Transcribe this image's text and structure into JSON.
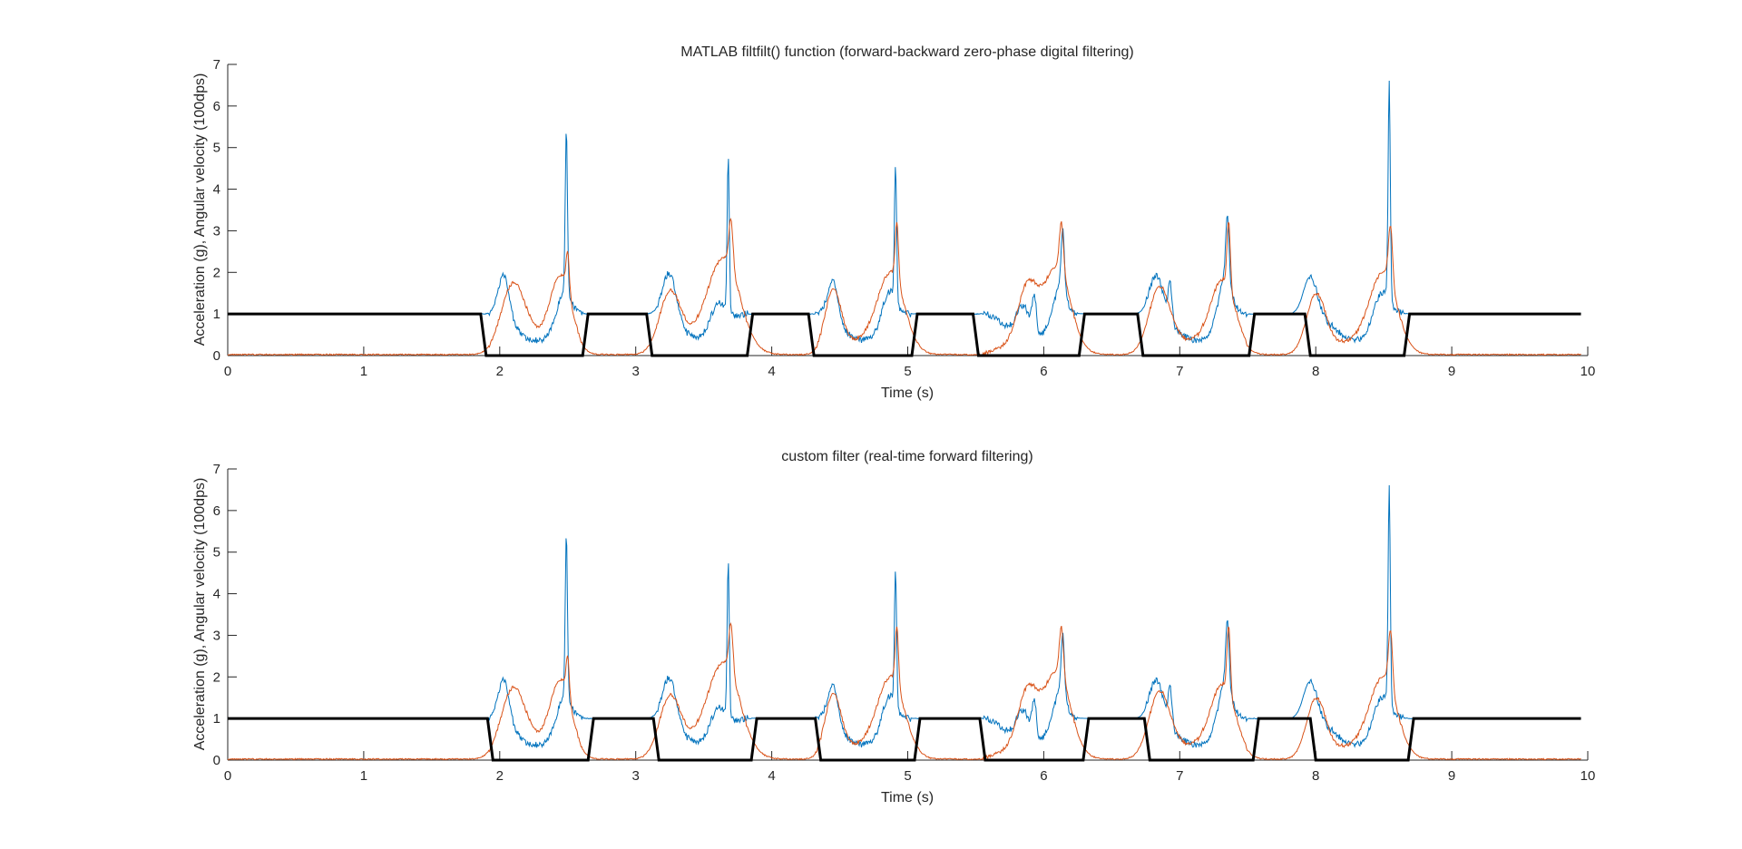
{
  "figure": {
    "background": "#ffffff"
  },
  "colors": {
    "accel": "#0072BD",
    "gyro": "#D95319",
    "state": "#000000",
    "axis": "#262626"
  },
  "chart_data": [
    {
      "type": "line",
      "title": "MATLAB filtfilt() function (forward-backward zero-phase digital filtering)",
      "xlabel": "Time (s)",
      "ylabel": "Acceleration (g), Angular velocity (100dps)",
      "xlim": [
        0,
        10
      ],
      "ylim": [
        0,
        7
      ],
      "xticks": [
        0,
        1,
        2,
        3,
        4,
        5,
        6,
        7,
        8,
        9,
        10
      ],
      "yticks": [
        0,
        1,
        2,
        3,
        4,
        5,
        6,
        7
      ],
      "grid": false,
      "legend": "none",
      "state_transitions": [
        [
          1.88,
          0
        ],
        [
          2.63,
          1
        ],
        [
          3.1,
          0
        ],
        [
          3.84,
          1
        ],
        [
          4.29,
          0
        ],
        [
          5.05,
          1
        ],
        [
          5.5,
          0
        ],
        [
          6.28,
          1
        ],
        [
          6.71,
          0
        ],
        [
          7.53,
          1
        ],
        [
          7.94,
          0
        ],
        [
          8.67,
          1
        ]
      ],
      "accel_spikes": [
        [
          2.03,
          1.1,
          0.04
        ],
        [
          2.47,
          0.8,
          0.05
        ],
        [
          2.49,
          3.9,
          0.008
        ],
        [
          3.25,
          1.1,
          0.05
        ],
        [
          3.6,
          0.7,
          0.06
        ],
        [
          3.68,
          3.7,
          0.008
        ],
        [
          4.45,
          1.0,
          0.04
        ],
        [
          4.86,
          0.8,
          0.05
        ],
        [
          4.91,
          3.3,
          0.008
        ],
        [
          5.85,
          0.8,
          0.05
        ],
        [
          5.93,
          0.9,
          0.015
        ],
        [
          6.11,
          0.8,
          0.05
        ],
        [
          6.14,
          1.6,
          0.012
        ],
        [
          6.83,
          1.0,
          0.05
        ],
        [
          6.93,
          0.9,
          0.015
        ],
        [
          7.33,
          1.1,
          0.05
        ],
        [
          7.35,
          1.6,
          0.012
        ],
        [
          7.96,
          0.9,
          0.05
        ],
        [
          8.48,
          0.8,
          0.06
        ],
        [
          8.54,
          5.3,
          0.008
        ]
      ],
      "gyro_peaks": [
        [
          2.1,
          1.5,
          0.09
        ],
        [
          2.45,
          1.7,
          0.08
        ],
        [
          2.5,
          0.9,
          0.012
        ],
        [
          3.25,
          1.4,
          0.08
        ],
        [
          3.65,
          2.1,
          0.12
        ],
        [
          3.7,
          1.2,
          0.015
        ],
        [
          4.45,
          1.4,
          0.06
        ],
        [
          4.88,
          1.8,
          0.1
        ],
        [
          4.92,
          1.4,
          0.012
        ],
        [
          5.88,
          1.3,
          0.07
        ],
        [
          6.1,
          1.9,
          0.1
        ],
        [
          6.13,
          1.2,
          0.015
        ],
        [
          6.85,
          1.5,
          0.08
        ],
        [
          7.32,
          1.6,
          0.09
        ],
        [
          7.36,
          1.6,
          0.012
        ],
        [
          8.0,
          1.4,
          0.07
        ],
        [
          8.5,
          1.8,
          0.1
        ],
        [
          8.55,
          1.4,
          0.015
        ]
      ]
    },
    {
      "type": "line",
      "title": "custom filter (real-time forward filtering)",
      "xlabel": "Time (s)",
      "ylabel": "Acceleration (g), Angular velocity (100dps)",
      "xlim": [
        0,
        10
      ],
      "ylim": [
        0,
        7
      ],
      "xticks": [
        0,
        1,
        2,
        3,
        4,
        5,
        6,
        7,
        8,
        9,
        10
      ],
      "yticks": [
        0,
        1,
        2,
        3,
        4,
        5,
        6,
        7
      ],
      "grid": false,
      "legend": "none",
      "state_transitions": [
        [
          1.93,
          0
        ],
        [
          2.67,
          1
        ],
        [
          3.15,
          0
        ],
        [
          3.87,
          1
        ],
        [
          4.34,
          0
        ],
        [
          5.07,
          1
        ],
        [
          5.55,
          0
        ],
        [
          6.31,
          1
        ],
        [
          6.76,
          0
        ],
        [
          7.56,
          1
        ],
        [
          7.98,
          0
        ],
        [
          8.7,
          1
        ]
      ],
      "accel_spikes": [
        [
          2.03,
          1.1,
          0.04
        ],
        [
          2.47,
          0.8,
          0.05
        ],
        [
          2.49,
          3.9,
          0.008
        ],
        [
          3.25,
          1.1,
          0.05
        ],
        [
          3.6,
          0.7,
          0.06
        ],
        [
          3.68,
          3.7,
          0.008
        ],
        [
          4.45,
          1.0,
          0.04
        ],
        [
          4.86,
          0.8,
          0.05
        ],
        [
          4.91,
          3.3,
          0.008
        ],
        [
          5.85,
          0.8,
          0.05
        ],
        [
          5.93,
          0.9,
          0.015
        ],
        [
          6.11,
          0.8,
          0.05
        ],
        [
          6.14,
          1.6,
          0.012
        ],
        [
          6.83,
          1.0,
          0.05
        ],
        [
          6.93,
          0.9,
          0.015
        ],
        [
          7.33,
          1.1,
          0.05
        ],
        [
          7.35,
          1.6,
          0.012
        ],
        [
          7.96,
          0.9,
          0.05
        ],
        [
          8.48,
          0.8,
          0.06
        ],
        [
          8.54,
          5.3,
          0.008
        ]
      ],
      "gyro_peaks": [
        [
          2.1,
          1.5,
          0.09
        ],
        [
          2.45,
          1.7,
          0.08
        ],
        [
          2.5,
          0.9,
          0.012
        ],
        [
          3.25,
          1.4,
          0.08
        ],
        [
          3.65,
          2.1,
          0.12
        ],
        [
          3.7,
          1.2,
          0.015
        ],
        [
          4.45,
          1.4,
          0.06
        ],
        [
          4.88,
          1.8,
          0.1
        ],
        [
          4.92,
          1.4,
          0.012
        ],
        [
          5.88,
          1.3,
          0.07
        ],
        [
          6.1,
          1.9,
          0.1
        ],
        [
          6.13,
          1.2,
          0.015
        ],
        [
          6.85,
          1.5,
          0.08
        ],
        [
          7.32,
          1.6,
          0.09
        ],
        [
          7.36,
          1.6,
          0.012
        ],
        [
          8.0,
          1.4,
          0.07
        ],
        [
          8.5,
          1.8,
          0.1
        ],
        [
          8.55,
          1.4,
          0.015
        ]
      ]
    }
  ]
}
